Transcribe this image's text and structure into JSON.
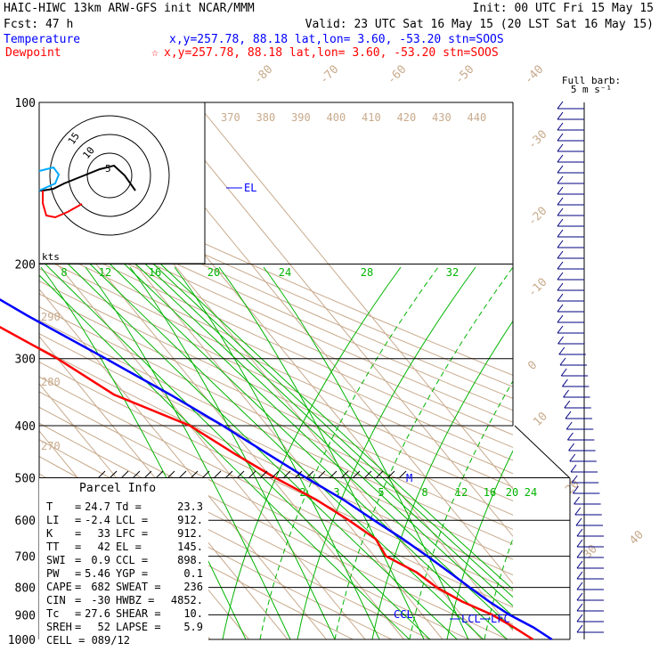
{
  "header": {
    "line1_left": "HAIC-HIWC 13km ARW-GFS init   NCAR/MMM",
    "line1_right": "Init: 00 UTC Fri 15 May 15",
    "line2_left": "Fcst:   47 h",
    "line2_right": "Valid: 23 UTC Sat 16 May 15 (20 LST Sat 16 May 15)",
    "temp_label": "Temperature",
    "temp_info": "x,y=257.78, 88.18   lat,lon=  3.60, -53.20  stn=SOOS",
    "dew_label": "Dewpoint",
    "dew_info": "x,y=257.78, 88.18   lat,lon=  3.60, -53.20  stn=SOOS",
    "dew_marker": "☆",
    "barb_title_1": "Full barb:",
    "barb_title_2": "5 m s⁻¹"
  },
  "colors": {
    "temperature": "#ff0000",
    "dewpoint": "#0000ff",
    "isotherm": "#c8aa8c",
    "mixing_ratio": "#00b400",
    "axis": "#000000"
  },
  "chart_data": {
    "type": "line",
    "pressure_levels": [
      "100",
      "200",
      "300",
      "400",
      "500",
      "600",
      "700",
      "800",
      "900",
      "1000"
    ],
    "isotherm_labels": [
      "-80",
      "-70",
      "-60",
      "-50",
      "-40",
      "-30",
      "-20",
      "-10",
      "0",
      "10",
      "20",
      "30",
      "40"
    ],
    "theta_labels": [
      "370",
      "380",
      "390",
      "400",
      "410",
      "420",
      "430",
      "440"
    ],
    "theta_low_labels": [
      "290",
      "280",
      "270"
    ],
    "mixing_ratio_labels_upper": [
      "8",
      "12",
      "16",
      "20",
      "24",
      "28",
      "32"
    ],
    "mixing_ratio_labels_lower": [
      "2",
      "3",
      "5",
      "8",
      "12",
      "16",
      "20",
      "24"
    ],
    "temperature_profile": [
      {
        "p": 1000,
        "t": 24.7
      },
      {
        "p": 950,
        "t": 22.5
      },
      {
        "p": 900,
        "t": 19.0
      },
      {
        "p": 850,
        "t": 16.5
      },
      {
        "p": 800,
        "t": 14.5
      },
      {
        "p": 750,
        "t": 12.5
      },
      {
        "p": 700,
        "t": 10.2
      },
      {
        "p": 650,
        "t": 7.5
      },
      {
        "p": 600,
        "t": 4.0
      },
      {
        "p": 550,
        "t": 0.5
      },
      {
        "p": 500,
        "t": -4.5
      },
      {
        "p": 450,
        "t": -9.5
      },
      {
        "p": 400,
        "t": -15.0
      },
      {
        "p": 350,
        "t": -22.0
      },
      {
        "p": 300,
        "t": -31.0
      },
      {
        "p": 250,
        "t": -42.0
      },
      {
        "p": 200,
        "t": -54.0
      },
      {
        "p": 175,
        "t": -60.5
      },
      {
        "p": 150,
        "t": -68.0
      },
      {
        "p": 125,
        "t": -75.0
      },
      {
        "p": 110,
        "t": -77.0
      },
      {
        "p": 100,
        "t": -77.5
      }
    ],
    "dewpoint_profile": [
      {
        "p": 1000,
        "t": 23.3
      },
      {
        "p": 950,
        "t": 21.0
      },
      {
        "p": 900,
        "t": 18.0
      },
      {
        "p": 850,
        "t": 13.0
      },
      {
        "p": 800,
        "t": 9.5
      },
      {
        "p": 750,
        "t": 7.5
      },
      {
        "p": 700,
        "t": 3.0
      },
      {
        "p": 650,
        "t": 4.0
      },
      {
        "p": 600,
        "t": 1.0
      },
      {
        "p": 550,
        "t": -3.0
      },
      {
        "p": 500,
        "t": -9.0
      },
      {
        "p": 450,
        "t": -14.5
      },
      {
        "p": 400,
        "t": -20.0
      },
      {
        "p": 350,
        "t": -33.0
      },
      {
        "p": 300,
        "t": -40.0
      },
      {
        "p": 250,
        "t": -51.0
      },
      {
        "p": 220,
        "t": -64.0
      },
      {
        "p": 200,
        "t": -64.5
      },
      {
        "p": 175,
        "t": -65.0
      },
      {
        "p": 150,
        "t": -70.0
      },
      {
        "p": 125,
        "t": -74.0
      },
      {
        "p": 110,
        "t": -76.0
      },
      {
        "p": 100,
        "t": -76.5
      }
    ],
    "markers": [
      {
        "label": "EL",
        "p": 145
      },
      {
        "label": "M",
        "p": 500
      },
      {
        "label": "CCL",
        "p": 898
      },
      {
        "label": "LCL",
        "p": 912
      },
      {
        "label": "LFC",
        "p": 912
      }
    ],
    "hodograph": {
      "ring_labels": [
        "5",
        "10",
        "15"
      ],
      "units": "kts"
    }
  },
  "parcel_info": {
    "title": "Parcel Info",
    "rows": [
      [
        "T",
        "24.7",
        "Td",
        "23.3"
      ],
      [
        "LI",
        "-2.4",
        "LCL",
        "912."
      ],
      [
        "K",
        "33",
        "LFC",
        "912."
      ],
      [
        "TT",
        "42",
        "EL",
        "145."
      ],
      [
        "SWI",
        "0.9",
        "CCL",
        "898."
      ],
      [
        "PW",
        "5.46",
        "YGP",
        "0.1"
      ],
      [
        "CAPE",
        "682",
        "SWEAT",
        "236"
      ],
      [
        "CIN",
        "-30",
        "HWBZ",
        "4852."
      ],
      [
        "Tc",
        "27.6",
        "SHEAR",
        "10."
      ],
      [
        "SREH",
        "52",
        "LAPSE",
        "5.9"
      ],
      [
        "CELL",
        "089/12",
        "",
        ""
      ]
    ]
  }
}
